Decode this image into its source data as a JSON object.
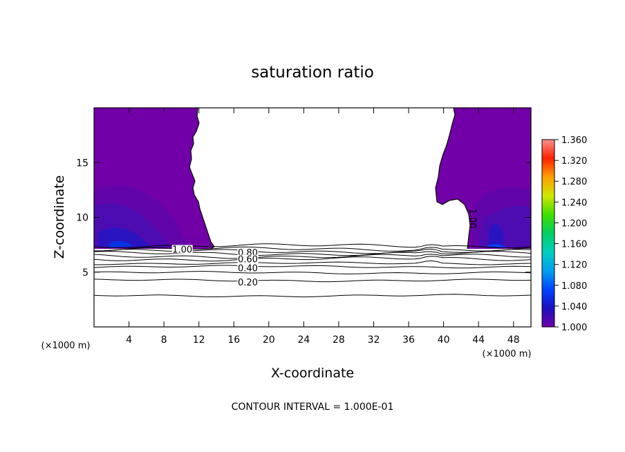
{
  "chart_data": {
    "type": "heatmap",
    "title": "saturation ratio",
    "xlabel": "X-coordinate",
    "ylabel": "Z-coordinate",
    "x_unit_left": "(×1000 m)",
    "x_unit_right": "(×1000 m)",
    "xlim": [
      0,
      50
    ],
    "ylim": [
      0,
      20
    ],
    "x_ticks": [
      4,
      8,
      12,
      16,
      20,
      24,
      28,
      32,
      36,
      40,
      44,
      48
    ],
    "y_ticks": [
      5,
      10,
      15
    ],
    "colorbar": {
      "ticks": [
        "1.000",
        "1.040",
        "1.080",
        "1.120",
        "1.160",
        "1.200",
        "1.240",
        "1.280",
        "1.320",
        "1.360"
      ],
      "range": [
        1.0,
        1.36
      ],
      "colors": [
        "#7200a8",
        "#1a10c0",
        "#0044ff",
        "#00a0f0",
        "#00d0c0",
        "#00d060",
        "#40e000",
        "#d0e800",
        "#ffa000",
        "#ff2000",
        "#ff9090"
      ]
    },
    "contour_labels": [
      {
        "text": "1.00",
        "x": 10.1,
        "y": 7.1
      },
      {
        "text": "0.80",
        "x": 17.6,
        "y": 6.8
      },
      {
        "text": "0.60",
        "x": 17.6,
        "y": 6.2
      },
      {
        "text": "0.40",
        "x": 17.6,
        "y": 5.4
      },
      {
        "text": "0.20",
        "x": 17.6,
        "y": 4.1
      },
      {
        "text": "1.00",
        "x": 43.3,
        "y": 9.9,
        "rotated": true
      }
    ],
    "contour_lines_y": [
      7.4,
      7.1,
      6.9,
      6.7,
      6.45,
      6.2,
      5.8,
      5.5,
      4.95,
      4.25,
      2.85
    ],
    "footer": "CONTOUR INTERVAL = 1.000E-01"
  }
}
